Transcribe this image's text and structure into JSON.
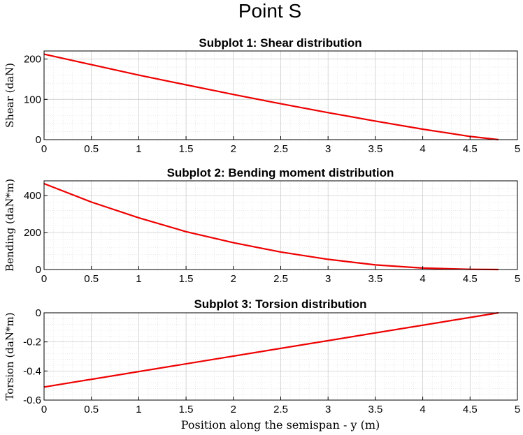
{
  "figure": {
    "title": "Point S",
    "xlabel": "Position along the semispan - y (m)"
  },
  "chart_data": [
    {
      "type": "line",
      "title": "Subplot 1: Shear distribution",
      "ylabel": "Shear (daN)",
      "xlim": [
        0,
        5
      ],
      "ylim": [
        0,
        220
      ],
      "xticks": [
        0,
        0.5,
        1,
        1.5,
        2,
        2.5,
        3,
        3.5,
        4,
        4.5,
        5
      ],
      "yticks": [
        0,
        100,
        200
      ],
      "ytick_labels": [
        "0",
        "100",
        "200"
      ],
      "grid": true,
      "series": [
        {
          "color": "#ee0000",
          "x": [
            0,
            0.5,
            1,
            1.5,
            2,
            2.5,
            3,
            3.5,
            4,
            4.5,
            4.8
          ],
          "y": [
            212,
            186,
            160,
            136,
            112,
            89,
            67,
            46,
            26,
            8,
            0
          ]
        }
      ]
    },
    {
      "type": "line",
      "title": "Subplot 2: Bending moment distribution",
      "ylabel": "Bending (daN*m)",
      "xlim": [
        0,
        5
      ],
      "ylim": [
        0,
        480
      ],
      "xticks": [
        0,
        0.5,
        1,
        1.5,
        2,
        2.5,
        3,
        3.5,
        4,
        4.5,
        5
      ],
      "yticks": [
        0,
        200,
        400
      ],
      "ytick_labels": [
        "0",
        "200",
        "400"
      ],
      "grid": true,
      "series": [
        {
          "color": "#ee0000",
          "x": [
            0,
            0.5,
            1,
            1.5,
            2,
            2.5,
            3,
            3.5,
            4,
            4.5,
            4.8
          ],
          "y": [
            465,
            365,
            280,
            205,
            145,
            95,
            55,
            25,
            8,
            1,
            0
          ]
        }
      ]
    },
    {
      "type": "line",
      "title": "Subplot 3: Torsion distribution",
      "ylabel": "Torsion (daN*m)",
      "xlim": [
        0,
        5
      ],
      "ylim": [
        -0.6,
        0
      ],
      "xticks": [
        0,
        0.5,
        1,
        1.5,
        2,
        2.5,
        3,
        3.5,
        4,
        4.5,
        5
      ],
      "yticks": [
        -0.6,
        -0.4,
        -0.2,
        0
      ],
      "ytick_labels": [
        "-0.6",
        "-0.4",
        "-0.2",
        "0"
      ],
      "grid": true,
      "series": [
        {
          "color": "#ee0000",
          "x": [
            0,
            4.8
          ],
          "y": [
            -0.51,
            0
          ]
        }
      ]
    }
  ]
}
